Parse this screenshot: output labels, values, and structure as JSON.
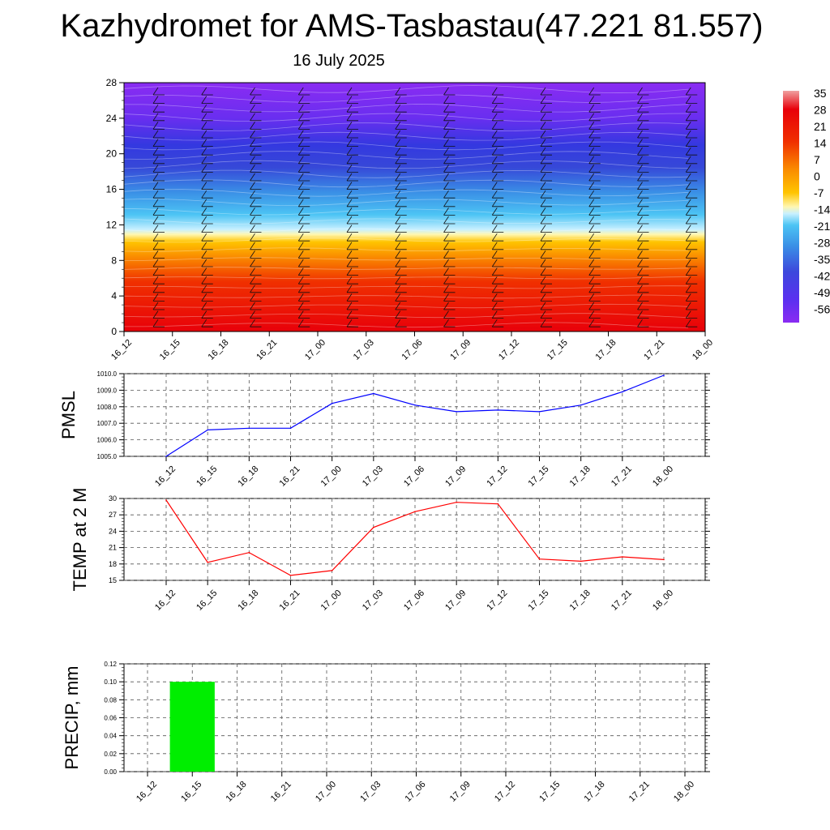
{
  "title": "Kazhydromet for AMS-Tasbastau(47.221 81.557)",
  "subtitle": "16 July 2025",
  "colors": {
    "pmsl_line": "#0000ff",
    "temp_line": "#ff0000",
    "precip_bar": "#00ee00",
    "grid": "#000000"
  },
  "chart_data": [
    {
      "type": "heatmap",
      "title": "",
      "x_labels": [
        "16_12",
        "16_15",
        "16_18",
        "16_21",
        "17_00",
        "17_03",
        "17_06",
        "17_09",
        "17_12",
        "17_15",
        "17_18",
        "17_21",
        "18_00"
      ],
      "y_ticks": [
        "0",
        "4",
        "8",
        "12",
        "16",
        "20",
        "24",
        "28"
      ],
      "ylim": [
        0,
        28
      ],
      "colorbar_labels": [
        "35",
        "28",
        "21",
        "14",
        "7",
        "0",
        "-7",
        "-14",
        "-21",
        "-28",
        "-35",
        "-42",
        "-49",
        "-56"
      ],
      "colorbar_range": [
        -63,
        42
      ],
      "overlay": "wind barbs and white isotherm contours"
    },
    {
      "type": "line",
      "ylabel": "PMSL",
      "x_labels": [
        "16_12",
        "16_15",
        "16_18",
        "16_21",
        "17_00",
        "17_03",
        "17_06",
        "17_09",
        "17_12",
        "17_15",
        "17_18",
        "17_21",
        "18_00"
      ],
      "y_ticks": [
        "1005.0",
        "1006.0",
        "1007.0",
        "1008.0",
        "1009.0",
        "1010.0"
      ],
      "ylim": [
        1005.0,
        1010.0
      ],
      "series": [
        {
          "values": [
            1005.0,
            1006.6,
            1006.7,
            1006.7,
            1008.2,
            1008.8,
            1008.1,
            1007.7,
            1007.8,
            1007.7,
            1008.1,
            1008.9,
            1009.9
          ]
        }
      ],
      "grid": true
    },
    {
      "type": "line",
      "ylabel": "TEMP at 2 M",
      "x_labels": [
        "16_12",
        "16_15",
        "16_18",
        "16_21",
        "17_00",
        "17_03",
        "17_06",
        "17_09",
        "17_12",
        "17_15",
        "17_18",
        "17_21",
        "18_00"
      ],
      "y_ticks": [
        "15",
        "18",
        "21",
        "24",
        "27",
        "30"
      ],
      "ylim": [
        15,
        30
      ],
      "series": [
        {
          "values": [
            29.7,
            18.3,
            20.1,
            15.9,
            16.8,
            24.7,
            27.6,
            29.3,
            29.0,
            18.9,
            18.5,
            19.3,
            18.8
          ]
        }
      ],
      "grid": true
    },
    {
      "type": "bar",
      "ylabel": "PRECIP, mm",
      "x_labels": [
        "16_12",
        "16_15",
        "16_18",
        "16_21",
        "17_00",
        "17_03",
        "17_06",
        "17_09",
        "17_12",
        "17_15",
        "17_18",
        "17_21",
        "18_00"
      ],
      "y_ticks": [
        "0.00",
        "0.02",
        "0.04",
        "0.06",
        "0.08",
        "0.10",
        "0.12"
      ],
      "ylim": [
        0,
        0.12
      ],
      "values": [
        0,
        0.1,
        0,
        0,
        0,
        0,
        0,
        0,
        0,
        0,
        0,
        0,
        0
      ],
      "grid": true
    }
  ]
}
